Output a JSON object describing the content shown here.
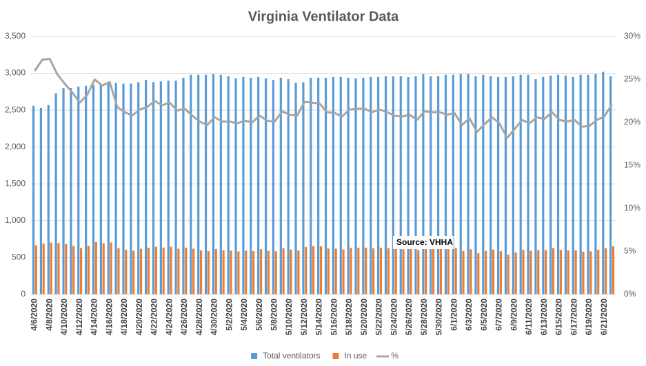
{
  "chart_data": {
    "type": "bar-line",
    "title": "Virginia Ventilator Data",
    "annotation": "Source: VHHA",
    "categories": [
      "4/6/2020",
      null,
      "4/8/2020",
      null,
      "4/10/2020",
      null,
      "4/12/2020",
      null,
      "4/14/2020",
      null,
      "4/16/2020",
      null,
      "4/18/2020",
      null,
      "4/20/2020",
      null,
      "4/22/2020",
      null,
      "4/24/2020",
      null,
      "4/26/2020",
      null,
      "4/28/2020",
      null,
      "4/30/2020",
      null,
      "5/2/2020",
      null,
      "5/4/2020",
      null,
      "5/6/2020",
      null,
      "5/8/2020",
      null,
      "5/10/2020",
      null,
      "5/12/2020",
      null,
      "5/14/2020",
      null,
      "5/16/2020",
      null,
      "5/18/2020",
      null,
      "5/20/2020",
      null,
      "5/22/2020",
      null,
      "5/24/2020",
      null,
      "5/26/2020",
      null,
      "5/28/2020",
      null,
      "5/30/2020",
      null,
      "6/1/2020",
      null,
      "6/3/2020",
      null,
      "6/5/2020",
      null,
      "6/7/2020",
      null,
      "6/9/2020",
      null,
      "6/11/2020",
      null,
      "6/13/2020",
      null,
      "6/15/2020",
      null,
      "6/17/2020",
      null,
      "6/19/2020",
      null,
      "6/21/2020",
      null
    ],
    "series": [
      {
        "name": "Total ventilators",
        "color": "#5b9bd5",
        "kind": "bar",
        "values": [
          2560,
          2530,
          2570,
          2730,
          2800,
          2800,
          2820,
          2830,
          2840,
          2850,
          2860,
          2870,
          2860,
          2860,
          2880,
          2910,
          2880,
          2890,
          2900,
          2900,
          2940,
          2980,
          2980,
          2980,
          2990,
          2980,
          2960,
          2930,
          2950,
          2940,
          2950,
          2930,
          2910,
          2940,
          2920,
          2870,
          2880,
          2940,
          2940,
          2940,
          2950,
          2950,
          2940,
          2930,
          2940,
          2950,
          2950,
          2960,
          2960,
          2960,
          2950,
          2960,
          2990,
          2960,
          2960,
          2980,
          2980,
          2990,
          2990,
          2960,
          2980,
          2960,
          2950,
          2950,
          2960,
          2980,
          2980,
          2920,
          2950,
          2970,
          2980,
          2970,
          2950,
          2980,
          2980,
          2990,
          3020,
          2960
        ]
      },
      {
        "name": "In use",
        "color": "#ed7d31",
        "kind": "bar",
        "values": [
          666,
          690,
          704,
          699,
          686,
          658,
          629,
          657,
          710,
          693,
          706,
          626,
          606,
          595,
          619,
          634,
          648,
          636,
          647,
          621,
          635,
          620,
          599,
          587,
          616,
          599,
          595,
          583,
          596,
          588,
          614,
          592,
          585,
          626,
          610,
          597,
          645,
          656,
          653,
          623,
          622,
          611,
          632,
          633,
          635,
          625,
          634,
          628,
          616,
          613,
          617,
          601,
          637,
          628,
          628,
          623,
          629,
          589,
          613,
          559,
          590,
          610,
          587,
          537,
          568,
          605,
          593,
          602,
          602,
          630,
          605,
          597,
          599,
          581,
          584,
          607,
          625,
          654
        ]
      },
      {
        "name": "%",
        "color": "#a5a5a5",
        "kind": "line",
        "axis": "y2",
        "values": [
          26,
          27.3,
          27.4,
          25.6,
          24.5,
          23.5,
          22.3,
          23.2,
          25,
          24.3,
          24.7,
          21.8,
          21.2,
          20.8,
          21.5,
          21.8,
          22.5,
          22,
          22.3,
          21.4,
          21.6,
          20.8,
          20.1,
          19.7,
          20.6,
          20.1,
          20.1,
          19.9,
          20.2,
          20,
          20.8,
          20.2,
          20.1,
          21.3,
          20.9,
          20.8,
          22.4,
          22.3,
          22.2,
          21.2,
          21.1,
          20.7,
          21.5,
          21.6,
          21.6,
          21.2,
          21.5,
          21.2,
          20.8,
          20.7,
          20.9,
          20.3,
          21.3,
          21.2,
          21.2,
          20.9,
          21.1,
          19.7,
          20.5,
          18.9,
          19.8,
          20.6,
          19.9,
          18.2,
          19.2,
          20.3,
          19.9,
          20.6,
          20.4,
          21.2,
          20.3,
          20.1,
          20.3,
          19.5,
          19.6,
          20.3,
          20.7,
          22.1
        ]
      }
    ],
    "ylim": [
      0,
      3500
    ],
    "yticks": [
      0,
      500,
      {
        "value": 1000,
        "label": "1,000"
      },
      {
        "value": 1500,
        "label": "1,500"
      },
      {
        "value": 2000,
        "label": "2,000"
      },
      {
        "value": 2500,
        "label": "2,500"
      },
      {
        "value": 3000,
        "label": "3,000"
      },
      {
        "value": 3500,
        "label": "3,500"
      }
    ],
    "y2lim": [
      0,
      30
    ],
    "y2ticks": [
      {
        "value": 0,
        "label": "0%"
      },
      {
        "value": 5,
        "label": "5%"
      },
      {
        "value": 10,
        "label": "10%"
      },
      {
        "value": 15,
        "label": "15%"
      },
      {
        "value": 20,
        "label": "20%"
      },
      {
        "value": 25,
        "label": "25%"
      },
      {
        "value": 30,
        "label": "30%"
      }
    ],
    "grid": true,
    "legend": "bottom"
  }
}
